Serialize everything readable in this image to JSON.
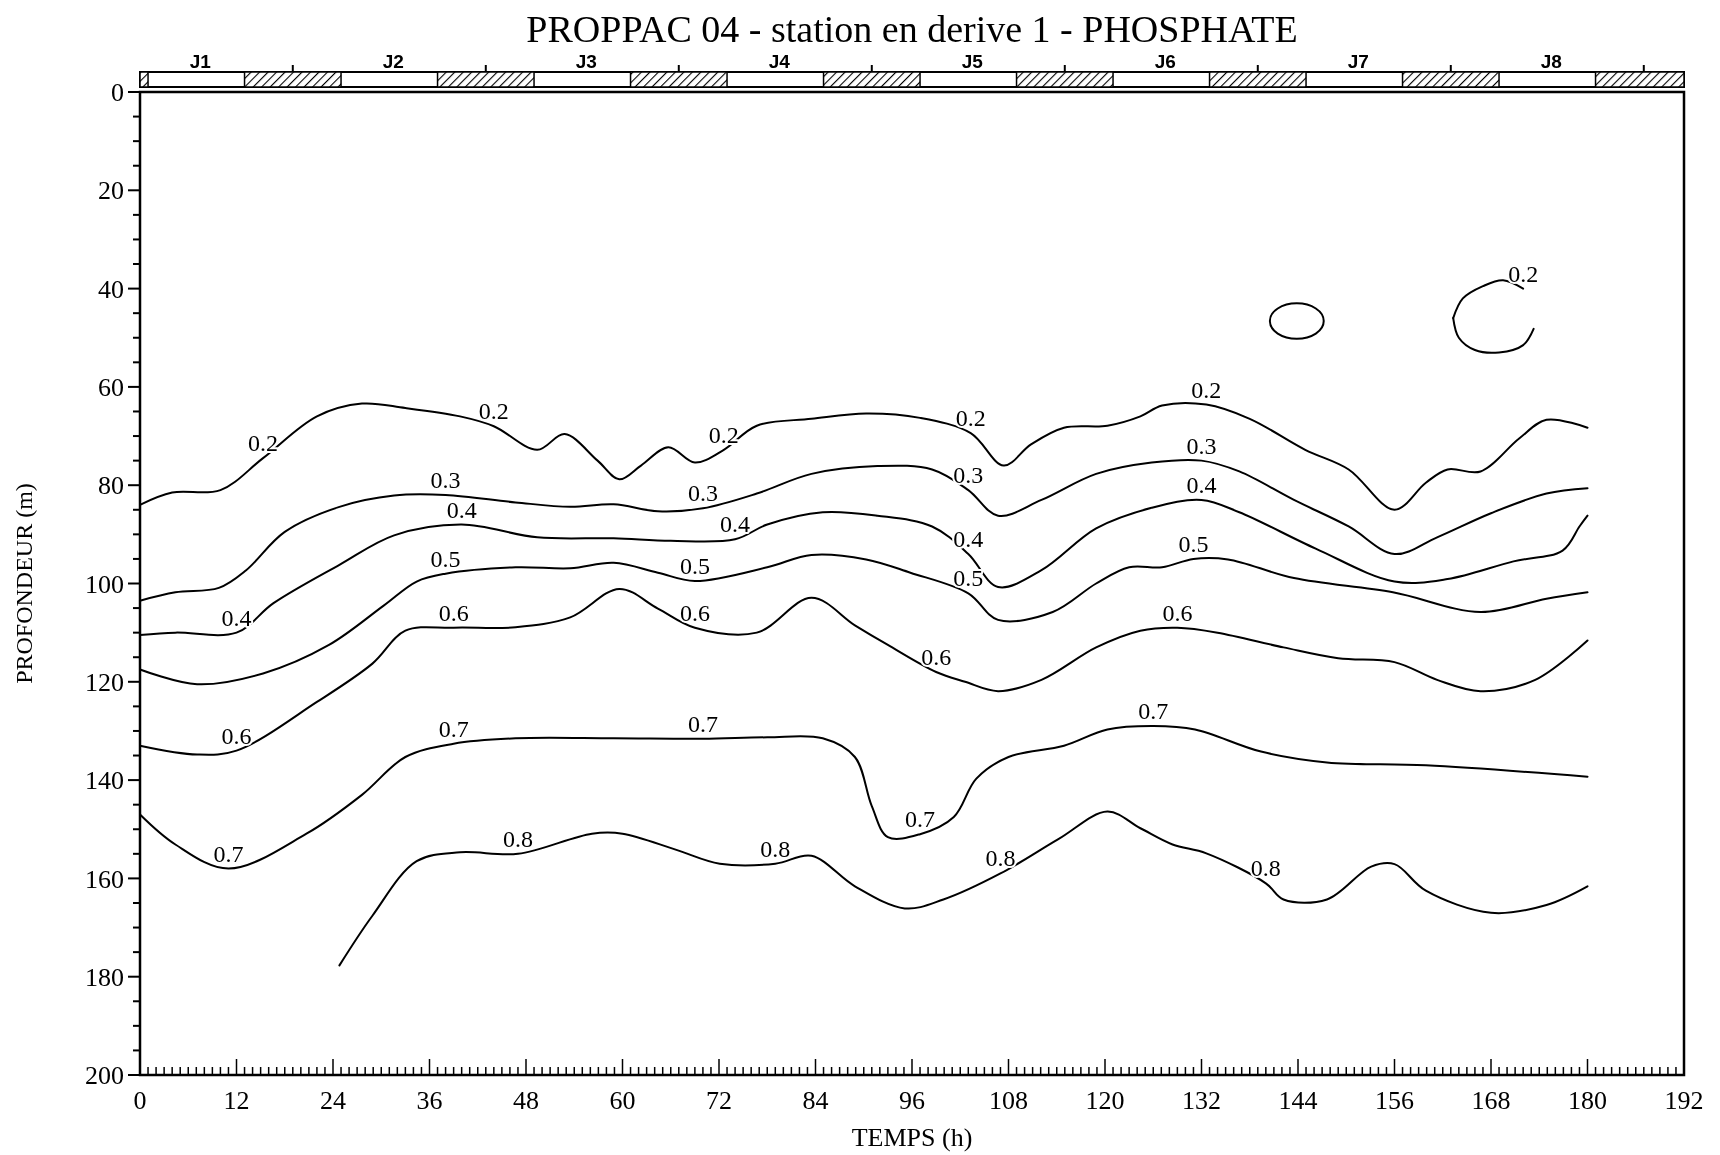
{
  "chart_data": {
    "type": "line",
    "title": "PROPPAC 04 - station en derive 1 - PHOSPHATE",
    "xlabel": "TEMPS (h)",
    "ylabel": "PROFONDEUR (m)",
    "xlim": [
      0,
      192
    ],
    "ylim": [
      200,
      0
    ],
    "xticks": [
      0,
      {
        "value": 1,
        "label": null
      },
      {
        "value": 2,
        "label": null
      },
      {
        "value": 3,
        "label": null
      },
      {
        "value": 4,
        "label": null
      },
      {
        "value": 5,
        "label": null
      },
      {
        "value": 6,
        "label": null
      },
      {
        "value": 7,
        "label": null
      },
      {
        "value": 8,
        "label": null
      },
      {
        "value": 9,
        "label": null
      },
      {
        "value": 10,
        "label": null
      },
      {
        "value": 11,
        "label": null
      },
      12,
      {
        "value": 13,
        "label": null
      },
      {
        "value": 14,
        "label": null
      },
      {
        "value": 15,
        "label": null
      },
      {
        "value": 16,
        "label": null
      },
      {
        "value": 17,
        "label": null
      },
      {
        "value": 18,
        "label": null
      },
      {
        "value": 19,
        "label": null
      },
      {
        "value": 20,
        "label": null
      },
      {
        "value": 21,
        "label": null
      },
      {
        "value": 22,
        "label": null
      },
      {
        "value": 23,
        "label": null
      },
      24,
      {
        "value": 25,
        "label": null
      },
      {
        "value": 26,
        "label": null
      },
      {
        "value": 27,
        "label": null
      },
      {
        "value": 28,
        "label": null
      },
      {
        "value": 29,
        "label": null
      },
      {
        "value": 30,
        "label": null
      },
      {
        "value": 31,
        "label": null
      },
      {
        "value": 32,
        "label": null
      },
      {
        "value": 33,
        "label": null
      },
      {
        "value": 34,
        "label": null
      },
      {
        "value": 35,
        "label": null
      },
      36,
      {
        "value": 37,
        "label": null
      },
      {
        "value": 38,
        "label": null
      },
      {
        "value": 39,
        "label": null
      },
      {
        "value": 40,
        "label": null
      },
      {
        "value": 41,
        "label": null
      },
      {
        "value": 42,
        "label": null
      },
      {
        "value": 43,
        "label": null
      },
      {
        "value": 44,
        "label": null
      },
      {
        "value": 45,
        "label": null
      },
      {
        "value": 46,
        "label": null
      },
      {
        "value": 47,
        "label": null
      },
      48,
      {
        "value": 49,
        "label": null
      },
      {
        "value": 50,
        "label": null
      },
      {
        "value": 51,
        "label": null
      },
      {
        "value": 52,
        "label": null
      },
      {
        "value": 53,
        "label": null
      },
      {
        "value": 54,
        "label": null
      },
      {
        "value": 55,
        "label": null
      },
      {
        "value": 56,
        "label": null
      },
      {
        "value": 57,
        "label": null
      },
      {
        "value": 58,
        "label": null
      },
      {
        "value": 59,
        "label": null
      },
      60,
      {
        "value": 61,
        "label": null
      },
      {
        "value": 62,
        "label": null
      },
      {
        "value": 63,
        "label": null
      },
      {
        "value": 64,
        "label": null
      },
      {
        "value": 65,
        "label": null
      },
      {
        "value": 66,
        "label": null
      },
      {
        "value": 67,
        "label": null
      },
      {
        "value": 68,
        "label": null
      },
      {
        "value": 69,
        "label": null
      },
      {
        "value": 70,
        "label": null
      },
      {
        "value": 71,
        "label": null
      },
      72,
      {
        "value": 73,
        "label": null
      },
      {
        "value": 74,
        "label": null
      },
      {
        "value": 75,
        "label": null
      },
      {
        "value": 76,
        "label": null
      },
      {
        "value": 77,
        "label": null
      },
      {
        "value": 78,
        "label": null
      },
      {
        "value": 79,
        "label": null
      },
      {
        "value": 80,
        "label": null
      },
      {
        "value": 81,
        "label": null
      },
      {
        "value": 82,
        "label": null
      },
      {
        "value": 83,
        "label": null
      },
      84,
      {
        "value": 85,
        "label": null
      },
      {
        "value": 86,
        "label": null
      },
      {
        "value": 87,
        "label": null
      },
      {
        "value": 88,
        "label": null
      },
      {
        "value": 89,
        "label": null
      },
      {
        "value": 90,
        "label": null
      },
      {
        "value": 91,
        "label": null
      },
      {
        "value": 92,
        "label": null
      },
      {
        "value": 93,
        "label": null
      },
      {
        "value": 94,
        "label": null
      },
      {
        "value": 95,
        "label": null
      },
      96,
      {
        "value": 97,
        "label": null
      },
      {
        "value": 98,
        "label": null
      },
      {
        "value": 99,
        "label": null
      },
      {
        "value": 100,
        "label": null
      },
      {
        "value": 101,
        "label": null
      },
      {
        "value": 102,
        "label": null
      },
      {
        "value": 103,
        "label": null
      },
      {
        "value": 104,
        "label": null
      },
      {
        "value": 105,
        "label": null
      },
      {
        "value": 106,
        "label": null
      },
      {
        "value": 107,
        "label": null
      },
      108,
      {
        "value": 109,
        "label": null
      },
      {
        "value": 110,
        "label": null
      },
      {
        "value": 111,
        "label": null
      },
      {
        "value": 112,
        "label": null
      },
      {
        "value": 113,
        "label": null
      },
      {
        "value": 114,
        "label": null
      },
      {
        "value": 115,
        "label": null
      },
      {
        "value": 116,
        "label": null
      },
      {
        "value": 117,
        "label": null
      },
      {
        "value": 118,
        "label": null
      },
      {
        "value": 119,
        "label": null
      },
      120,
      {
        "value": 121,
        "label": null
      },
      {
        "value": 122,
        "label": null
      },
      {
        "value": 123,
        "label": null
      },
      {
        "value": 124,
        "label": null
      },
      {
        "value": 125,
        "label": null
      },
      {
        "value": 126,
        "label": null
      },
      {
        "value": 127,
        "label": null
      },
      {
        "value": 128,
        "label": null
      },
      {
        "value": 129,
        "label": null
      },
      {
        "value": 130,
        "label": null
      },
      {
        "value": 131,
        "label": null
      },
      132,
      {
        "value": 133,
        "label": null
      },
      {
        "value": 134,
        "label": null
      },
      {
        "value": 135,
        "label": null
      },
      {
        "value": 136,
        "label": null
      },
      {
        "value": 137,
        "label": null
      },
      {
        "value": 138,
        "label": null
      },
      {
        "value": 139,
        "label": null
      },
      {
        "value": 140,
        "label": null
      },
      {
        "value": 141,
        "label": null
      },
      {
        "value": 142,
        "label": null
      },
      {
        "value": 143,
        "label": null
      },
      144,
      {
        "value": 145,
        "label": null
      },
      {
        "value": 146,
        "label": null
      },
      {
        "value": 147,
        "label": null
      },
      {
        "value": 148,
        "label": null
      },
      {
        "value": 149,
        "label": null
      },
      {
        "value": 150,
        "label": null
      },
      {
        "value": 151,
        "label": null
      },
      {
        "value": 152,
        "label": null
      },
      {
        "value": 153,
        "label": null
      },
      {
        "value": 154,
        "label": null
      },
      {
        "value": 155,
        "label": null
      },
      156,
      {
        "value": 157,
        "label": null
      },
      {
        "value": 158,
        "label": null
      },
      {
        "value": 159,
        "label": null
      },
      {
        "value": 160,
        "label": null
      },
      {
        "value": 161,
        "label": null
      },
      {
        "value": 162,
        "label": null
      },
      {
        "value": 163,
        "label": null
      },
      {
        "value": 164,
        "label": null
      },
      {
        "value": 165,
        "label": null
      },
      {
        "value": 166,
        "label": null
      },
      {
        "value": 167,
        "label": null
      },
      168,
      {
        "value": 169,
        "label": null
      },
      {
        "value": 170,
        "label": null
      },
      {
        "value": 171,
        "label": null
      },
      {
        "value": 172,
        "label": null
      },
      {
        "value": 173,
        "label": null
      },
      {
        "value": 174,
        "label": null
      },
      {
        "value": 175,
        "label": null
      },
      {
        "value": 176,
        "label": null
      },
      {
        "value": 177,
        "label": null
      },
      {
        "value": 178,
        "label": null
      },
      {
        "value": 179,
        "label": null
      },
      180,
      {
        "value": 181,
        "label": null
      },
      {
        "value": 182,
        "label": null
      },
      {
        "value": 183,
        "label": null
      },
      {
        "value": 184,
        "label": null
      },
      {
        "value": 185,
        "label": null
      },
      {
        "value": 186,
        "label": null
      },
      {
        "value": 187,
        "label": null
      },
      {
        "value": 188,
        "label": null
      },
      {
        "value": 189,
        "label": null
      },
      {
        "value": 190,
        "label": null
      },
      {
        "value": 191,
        "label": null
      },
      192
    ],
    "yticks": [
      0,
      {
        "value": 5,
        "label": null
      },
      {
        "value": 10,
        "label": null
      },
      {
        "value": 15,
        "label": null
      },
      20,
      {
        "value": 25,
        "label": null
      },
      {
        "value": 30,
        "label": null
      },
      {
        "value": 35,
        "label": null
      },
      40,
      {
        "value": 45,
        "label": null
      },
      {
        "value": 50,
        "label": null
      },
      {
        "value": 55,
        "label": null
      },
      60,
      {
        "value": 65,
        "label": null
      },
      {
        "value": 70,
        "label": null
      },
      {
        "value": 75,
        "label": null
      },
      80,
      {
        "value": 85,
        "label": null
      },
      {
        "value": 90,
        "label": null
      },
      {
        "value": 95,
        "label": null
      },
      100,
      {
        "value": 105,
        "label": null
      },
      {
        "value": 110,
        "label": null
      },
      {
        "value": 115,
        "label": null
      },
      120,
      {
        "value": 125,
        "label": null
      },
      {
        "value": 130,
        "label": null
      },
      {
        "value": 135,
        "label": null
      },
      140,
      {
        "value": 145,
        "label": null
      },
      {
        "value": 150,
        "label": null
      },
      {
        "value": 155,
        "label": null
      },
      160,
      {
        "value": 165,
        "label": null
      },
      {
        "value": 170,
        "label": null
      },
      {
        "value": 175,
        "label": null
      },
      180,
      {
        "value": 185,
        "label": null
      },
      {
        "value": 190,
        "label": null
      },
      {
        "value": 195,
        "label": null
      },
      200
    ],
    "line_style": "solid",
    "series": [
      {
        "color": "#000000",
        "x": [
          0,
          4,
          10,
          15.3,
          22,
          27.6,
          33,
          39.8,
          44,
          49.4,
          52.8,
          56.9,
          59.6,
          62.3,
          65.7,
          69,
          72.6,
          76.7,
          83.5,
          90.3,
          97,
          103.3,
          107.4,
          110.8,
          114.9,
          120.3,
          124.4,
          127.1,
          132.6,
          138,
          144.9,
          150.3,
          156,
          159.9,
          162.6,
          166.7,
          171.5,
          174.9,
          180
        ],
        "values": [
          84,
          81.5,
          81,
          74.5,
          66,
          63.4,
          64.3,
          66,
          68,
          72.8,
          69.6,
          75,
          78.8,
          76,
          72.3,
          75.4,
          72.8,
          67.9,
          66.5,
          65.4,
          66.3,
          69.4,
          76,
          71.7,
          68.3,
          67.9,
          66,
          63.8,
          63.6,
          66.5,
          72.8,
          76.8,
          85,
          79.5,
          76.8,
          77.2,
          70.5,
          66.7,
          68.3
        ]
      },
      {
        "color": "#000000",
        "x": [
          0,
          4.4,
          9.8,
          13.2,
          18,
          24.8,
          31.6,
          38,
          46.7,
          53.5,
          58.9,
          64.4,
          70,
          76.7,
          83.5,
          91.7,
          98.5,
          103,
          106.7,
          112.1,
          118.9,
          125.8,
          132,
          136.7,
          143.5,
          150.3,
          156,
          161.3,
          168,
          174.9,
          180
        ],
        "values": [
          103.5,
          101.8,
          100.9,
          97.3,
          89.5,
          84.4,
          82.1,
          82,
          83.5,
          84.4,
          83.9,
          85.3,
          84.7,
          81.7,
          77.7,
          76.1,
          76.8,
          81,
          86.2,
          83,
          77.7,
          75.4,
          75,
          77.2,
          83,
          88.4,
          94,
          90.6,
          85.7,
          81.7,
          80.6
        ]
      },
      {
        "color": "#000000",
        "x": [
          0,
          4.4,
          12,
          16.6,
          24.8,
          31.6,
          40,
          49.4,
          58.9,
          66,
          74,
          78,
          84.9,
          91.7,
          98.5,
          103,
          106.7,
          112.1,
          118.9,
          125.8,
          132,
          136.7,
          146.2,
          156,
          162.6,
          170.8,
          176.9,
          179,
          180
        ],
        "values": [
          110.5,
          110,
          110,
          104,
          96.2,
          90.2,
          88,
          90.6,
          90.8,
          91.3,
          91,
          88,
          85.5,
          86.2,
          88.4,
          94,
          100.7,
          97.3,
          88.8,
          84.6,
          83,
          85.5,
          92.9,
          99.6,
          99.1,
          95.5,
          93.3,
          88.4,
          86.2
        ]
      },
      {
        "color": "#000000",
        "x": [
          0,
          7.1,
          15.3,
          23.5,
          30.3,
          34.4,
          38,
          46.7,
          53.5,
          58.9,
          64.4,
          69,
          78,
          83.5,
          90.3,
          95.8,
          103,
          106.7,
          113.5,
          118.9,
          123,
          127.1,
          131,
          135.3,
          143.5,
          155.8,
          166.7,
          174.9,
          180
        ],
        "values": [
          117.5,
          120.5,
          118.3,
          112.5,
          104.5,
          99.6,
          98,
          96.7,
          96.9,
          95.8,
          97.8,
          99.5,
          96.7,
          94.2,
          95.1,
          97.8,
          102,
          107.4,
          105.8,
          100,
          96.7,
          96.7,
          95,
          95.1,
          98.9,
          101.8,
          105.8,
          103.1,
          101.8
        ]
      },
      {
        "color": "#000000",
        "x": [
          0,
          7.1,
          12,
          22,
          28.9,
          33,
          39,
          46.7,
          53.5,
          59.6,
          64.4,
          69,
          76.7,
          83.5,
          88.9,
          93,
          99,
          102.6,
          106.7,
          112.1,
          118.9,
          124.4,
          129,
          134,
          142.2,
          149,
          156,
          161.3,
          166.7,
          173.5,
          180
        ],
        "values": [
          133,
          134.8,
          134,
          124.1,
          116.3,
          109.6,
          109,
          108.9,
          106.9,
          101.1,
          105.1,
          109,
          110,
          102.9,
          108.5,
          112.5,
          118,
          120,
          121.9,
          119.6,
          113,
          109.6,
          109,
          110,
          113,
          115.2,
          116,
          119.6,
          121.9,
          119.6,
          111.6
        ]
      },
      {
        "color": "#000000",
        "x": [
          0,
          4.4,
          11,
          20.7,
          27.6,
          33,
          39,
          46.7,
          58.9,
          70,
          78,
          84.9,
          88.9,
          91,
          93,
          97,
          101.2,
          104,
          108,
          114.9,
          120.3,
          126,
          131.2,
          139.4,
          147.6,
          159.9,
          180
        ],
        "values": [
          147,
          153.1,
          158,
          150.9,
          143,
          135.3,
          132.6,
          131.5,
          131.5,
          131.6,
          131.3,
          131.5,
          135.3,
          145.3,
          151.6,
          151,
          147.5,
          139.7,
          135.3,
          133,
          129.7,
          129,
          129.7,
          134.2,
          136.4,
          137,
          139.3
        ]
      },
      {
        "color": "#000000",
        "x": [
          24.8,
          28.9,
          34.4,
          39.8,
          47,
          56.2,
          60,
          66.7,
          72.1,
          79,
          83.5,
          88.9,
          95.1,
          99.9,
          107,
          114.2,
          120.3,
          124.4,
          128.4,
          132.6,
          140,
          142.2,
          147.6,
          153.1,
          156,
          159.9,
          168,
          174.9,
          180
        ],
        "values": [
          177.7,
          167.6,
          156.5,
          154.7,
          155,
          150.9,
          150.9,
          154.2,
          157,
          157,
          155.4,
          161.6,
          166.1,
          164.3,
          159,
          152,
          146.4,
          149.8,
          153.1,
          154.9,
          161,
          164.3,
          164.3,
          157.6,
          157.1,
          162.5,
          167,
          165.4,
          161.6
        ]
      },
      {
        "color": "#000000",
        "x": [
          163.3,
          164,
          166,
          169,
          172,
          173.3
        ],
        "values": [
          46,
          50,
          52.5,
          53,
          51.5,
          48.2
        ]
      },
      {
        "color": "#000000",
        "x": [
          163.3,
          164.5,
          167,
          169.5,
          172
        ],
        "values": [
          46,
          42,
          39.5,
          38.3,
          40
        ]
      }
    ],
    "annotations": [
      "J1",
      "J2",
      "J3",
      "J4",
      "J5",
      "J6",
      "J7",
      "J8",
      {
        "text": "0.2",
        "x": 15.3,
        "y": 74.5
      },
      {
        "text": "0.2",
        "x": 44,
        "y": 68
      },
      {
        "text": "0.2",
        "x": 72.6,
        "y": 72.8
      },
      {
        "text": "0.2",
        "x": 103.3,
        "y": 69.4
      },
      {
        "text": "0.2",
        "x": 132.6,
        "y": 63.6
      },
      {
        "text": "0.2",
        "x": 172,
        "y": 40
      },
      {
        "text": "0.3",
        "x": 38,
        "y": 82
      },
      {
        "text": "0.3",
        "x": 70,
        "y": 84.7
      },
      {
        "text": "0.3",
        "x": 103,
        "y": 81
      },
      {
        "text": "0.3",
        "x": 132,
        "y": 75
      },
      {
        "text": "0.4",
        "x": 12,
        "y": 110
      },
      {
        "text": "0.4",
        "x": 40,
        "y": 88
      },
      {
        "text": "0.4",
        "x": 74,
        "y": 91
      },
      {
        "text": "0.4",
        "x": 103,
        "y": 94
      },
      {
        "text": "0.4",
        "x": 132,
        "y": 83
      },
      {
        "text": "0.5",
        "x": 38,
        "y": 98
      },
      {
        "text": "0.5",
        "x": 69,
        "y": 99.5
      },
      {
        "text": "0.5",
        "x": 103,
        "y": 102
      },
      {
        "text": "0.5",
        "x": 131,
        "y": 95
      },
      {
        "text": "0.6",
        "x": 12,
        "y": 134
      },
      {
        "text": "0.6",
        "x": 39,
        "y": 109
      },
      {
        "text": "0.6",
        "x": 69,
        "y": 109
      },
      {
        "text": "0.6",
        "x": 99,
        "y": 118
      },
      {
        "text": "0.6",
        "x": 129,
        "y": 109
      },
      {
        "text": "0.7",
        "x": 11,
        "y": 158
      },
      {
        "text": "0.7",
        "x": 39,
        "y": 132.6
      },
      {
        "text": "0.7",
        "x": 70,
        "y": 131.6
      },
      {
        "text": "0.7",
        "x": 97,
        "y": 151
      },
      {
        "text": "0.7",
        "x": 126,
        "y": 129
      },
      {
        "text": "0.8",
        "x": 47,
        "y": 155
      },
      {
        "text": "0.8",
        "x": 79,
        "y": 157
      },
      {
        "text": "0.8",
        "x": 107,
        "y": 159
      },
      {
        "text": "0.8",
        "x": 140,
        "y": 161
      }
    ]
  }
}
